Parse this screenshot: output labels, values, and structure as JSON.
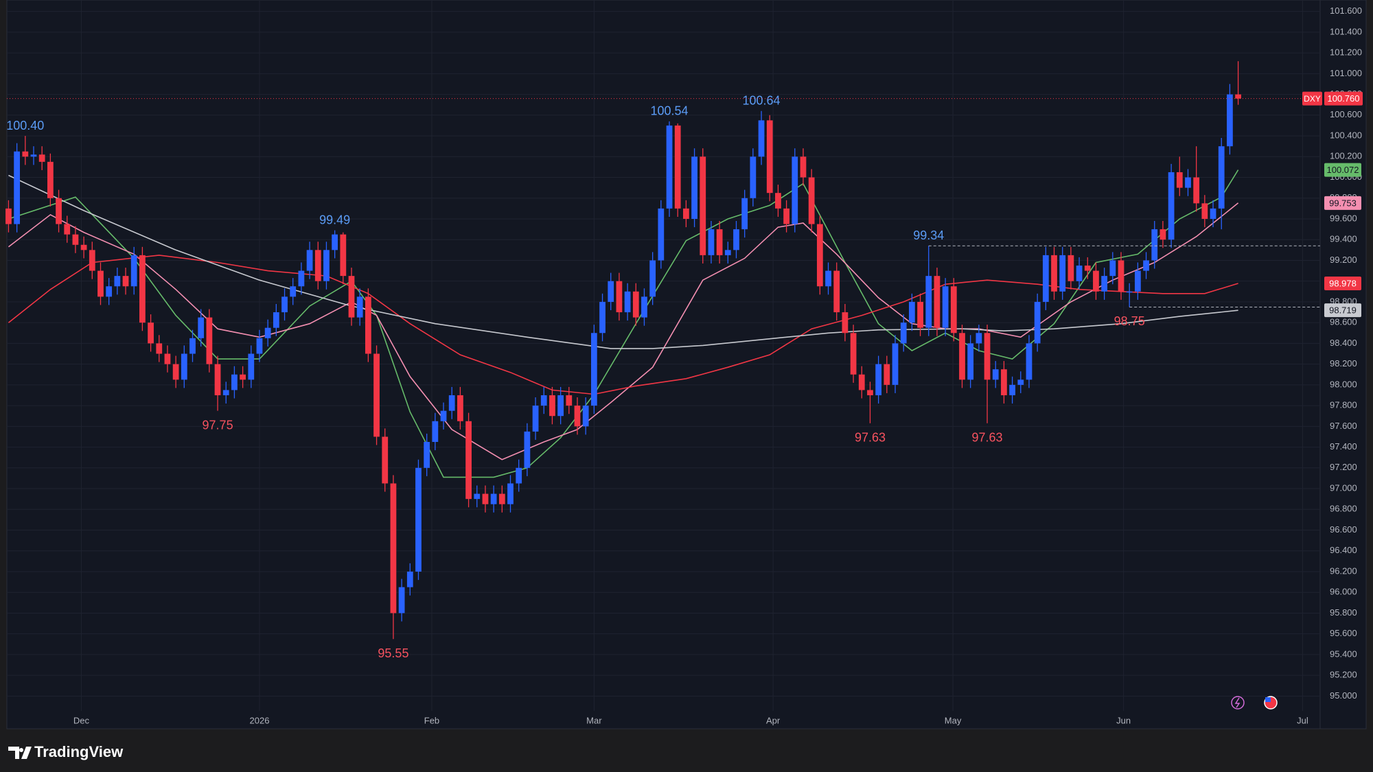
{
  "chart_data": {
    "type": "candlestick",
    "up_color": "#2962ff",
    "down_color": "#f23645",
    "grid": true,
    "xlim": [
      -0.2,
      156.8
    ],
    "xticks": [
      {
        "value": 8.7,
        "label": "Dec"
      },
      {
        "value": 30,
        "label": "2026"
      },
      {
        "value": 50.6,
        "label": "Feb"
      },
      {
        "value": 70,
        "label": "Mar"
      },
      {
        "value": 91.4,
        "label": "Apr"
      },
      {
        "value": 112.9,
        "label": "May"
      },
      {
        "value": 133.3,
        "label": "Jun"
      },
      {
        "value": 154.7,
        "label": "Jul"
      }
    ],
    "ylim": [
      94.857,
      101.71
    ],
    "yticks": [
      {
        "value": 95,
        "label": "95.000"
      },
      {
        "value": 95.2,
        "label": "95.200"
      },
      {
        "value": 95.4,
        "label": "95.400"
      },
      {
        "value": 95.6,
        "label": "95.600"
      },
      {
        "value": 95.8,
        "label": "95.800"
      },
      {
        "value": 96,
        "label": "96.000"
      },
      {
        "value": 96.2,
        "label": "96.200"
      },
      {
        "value": 96.4,
        "label": "96.400"
      },
      {
        "value": 96.6,
        "label": "96.600"
      },
      {
        "value": 96.8,
        "label": "96.800"
      },
      {
        "value": 97,
        "label": "97.000"
      },
      {
        "value": 97.2,
        "label": "97.200"
      },
      {
        "value": 97.4,
        "label": "97.400"
      },
      {
        "value": 97.6,
        "label": "97.600"
      },
      {
        "value": 97.8,
        "label": "97.800"
      },
      {
        "value": 98,
        "label": "98.000"
      },
      {
        "value": 98.2,
        "label": "98.200"
      },
      {
        "value": 98.4,
        "label": "98.400"
      },
      {
        "value": 98.6,
        "label": "98.600"
      },
      {
        "value": 98.8,
        "label": "98.800"
      },
      {
        "value": 99,
        "label": "99.000"
      },
      {
        "value": 99.2,
        "label": "99.200"
      },
      {
        "value": 99.4,
        "label": "99.400"
      },
      {
        "value": 99.6,
        "label": "99.600"
      },
      {
        "value": 99.8,
        "label": "99.800"
      },
      {
        "value": 100,
        "label": "100.000"
      },
      {
        "value": 100.2,
        "label": "100.200"
      },
      {
        "value": 100.4,
        "label": "100.400"
      },
      {
        "value": 100.6,
        "label": "100.600"
      },
      {
        "value": 100.8,
        "label": "100.800"
      },
      {
        "value": 101,
        "label": "101.000"
      },
      {
        "value": 101.2,
        "label": "101.200"
      },
      {
        "value": 101.4,
        "label": "101.400"
      },
      {
        "value": 101.6,
        "label": "101.600"
      }
    ],
    "candles": [
      [
        99.7,
        99.78,
        99.47,
        99.55
      ],
      [
        99.55,
        100.33,
        99.47,
        100.25
      ],
      [
        100.25,
        100.4,
        100.12,
        100.2
      ],
      [
        100.2,
        100.3,
        100.12,
        100.22
      ],
      [
        100.22,
        100.3,
        100.07,
        100.15
      ],
      [
        100.15,
        100.23,
        99.72,
        99.8
      ],
      [
        99.8,
        99.88,
        99.47,
        99.55
      ],
      [
        99.55,
        99.63,
        99.37,
        99.45
      ],
      [
        99.45,
        99.53,
        99.27,
        99.35
      ],
      [
        99.35,
        99.43,
        99.22,
        99.3
      ],
      [
        99.3,
        99.38,
        99.02,
        99.1
      ],
      [
        99.1,
        99.18,
        98.77,
        98.85
      ],
      [
        98.85,
        99.03,
        98.77,
        98.95
      ],
      [
        98.95,
        99.13,
        98.87,
        99.05
      ],
      [
        99.05,
        99.13,
        98.87,
        98.95
      ],
      [
        98.95,
        99.33,
        98.87,
        99.25
      ],
      [
        99.25,
        99.33,
        98.52,
        98.6
      ],
      [
        98.6,
        98.68,
        98.32,
        98.4
      ],
      [
        98.4,
        98.48,
        98.22,
        98.3
      ],
      [
        98.3,
        98.38,
        98.12,
        98.2
      ],
      [
        98.2,
        98.28,
        97.97,
        98.05
      ],
      [
        98.05,
        98.38,
        97.97,
        98.3
      ],
      [
        98.3,
        98.53,
        98.22,
        98.45
      ],
      [
        98.45,
        98.73,
        98.37,
        98.65
      ],
      [
        98.65,
        98.73,
        98.12,
        98.2
      ],
      [
        98.2,
        98.28,
        97.75,
        97.9
      ],
      [
        97.9,
        98.03,
        97.82,
        97.95
      ],
      [
        97.95,
        98.18,
        97.87,
        98.1
      ],
      [
        98.1,
        98.18,
        97.97,
        98.05
      ],
      [
        98.05,
        98.38,
        97.97,
        98.3
      ],
      [
        98.3,
        98.53,
        98.22,
        98.45
      ],
      [
        98.45,
        98.63,
        98.37,
        98.55
      ],
      [
        98.55,
        98.78,
        98.47,
        98.7
      ],
      [
        98.7,
        98.93,
        98.62,
        98.85
      ],
      [
        98.85,
        99.03,
        98.77,
        98.95
      ],
      [
        98.95,
        99.18,
        98.87,
        99.1
      ],
      [
        99.1,
        99.38,
        99.02,
        99.3
      ],
      [
        99.3,
        99.38,
        98.92,
        99.0
      ],
      [
        99.0,
        99.38,
        98.92,
        99.3
      ],
      [
        99.3,
        99.49,
        99.22,
        99.45
      ],
      [
        99.45,
        99.47,
        98.97,
        99.05
      ],
      [
        99.05,
        99.13,
        98.57,
        98.65
      ],
      [
        98.65,
        98.93,
        98.57,
        98.85
      ],
      [
        98.85,
        98.93,
        98.22,
        98.3
      ],
      [
        98.3,
        98.38,
        97.42,
        97.5
      ],
      [
        97.5,
        97.58,
        96.97,
        97.05
      ],
      [
        97.05,
        97.13,
        95.55,
        95.8
      ],
      [
        95.8,
        96.13,
        95.72,
        96.05
      ],
      [
        96.05,
        96.28,
        95.97,
        96.2
      ],
      [
        96.2,
        97.28,
        96.12,
        97.2
      ],
      [
        97.2,
        97.53,
        97.12,
        97.45
      ],
      [
        97.45,
        97.73,
        97.37,
        97.65
      ],
      [
        97.65,
        97.83,
        97.57,
        97.75
      ],
      [
        97.75,
        97.98,
        97.67,
        97.9
      ],
      [
        97.9,
        97.98,
        97.57,
        97.65
      ],
      [
        97.65,
        97.73,
        96.82,
        96.9
      ],
      [
        96.9,
        97.03,
        96.82,
        96.95
      ],
      [
        96.95,
        97.03,
        96.77,
        96.85
      ],
      [
        96.85,
        97.03,
        96.77,
        96.95
      ],
      [
        96.95,
        97.03,
        96.77,
        96.85
      ],
      [
        96.85,
        97.13,
        96.77,
        97.05
      ],
      [
        97.05,
        97.28,
        96.97,
        97.2
      ],
      [
        97.2,
        97.63,
        97.12,
        97.55
      ],
      [
        97.55,
        97.88,
        97.47,
        97.8
      ],
      [
        97.8,
        97.98,
        97.72,
        97.9
      ],
      [
        97.9,
        97.98,
        97.62,
        97.7
      ],
      [
        97.7,
        97.98,
        97.62,
        97.9
      ],
      [
        97.9,
        97.98,
        97.72,
        97.8
      ],
      [
        97.8,
        97.88,
        97.52,
        97.6
      ],
      [
        97.6,
        97.88,
        97.52,
        97.8
      ],
      [
        97.8,
        98.58,
        97.72,
        98.5
      ],
      [
        98.5,
        98.88,
        98.42,
        98.8
      ],
      [
        98.8,
        99.08,
        98.72,
        99.0
      ],
      [
        99.0,
        99.08,
        98.62,
        98.7
      ],
      [
        98.7,
        98.98,
        98.62,
        98.9
      ],
      [
        98.9,
        98.98,
        98.57,
        98.65
      ],
      [
        98.65,
        98.93,
        98.57,
        98.85
      ],
      [
        98.85,
        99.28,
        98.77,
        99.2
      ],
      [
        99.2,
        99.78,
        99.12,
        99.7
      ],
      [
        99.7,
        100.54,
        99.62,
        100.5
      ],
      [
        100.5,
        100.52,
        99.62,
        99.7
      ],
      [
        99.7,
        99.78,
        99.52,
        99.6
      ],
      [
        99.6,
        100.28,
        99.52,
        100.2
      ],
      [
        100.2,
        100.28,
        99.17,
        99.25
      ],
      [
        99.25,
        99.58,
        99.17,
        99.5
      ],
      [
        99.5,
        99.58,
        99.17,
        99.25
      ],
      [
        99.25,
        99.38,
        99.17,
        99.3
      ],
      [
        99.3,
        99.58,
        99.22,
        99.5
      ],
      [
        99.5,
        99.88,
        99.42,
        99.8
      ],
      [
        99.8,
        100.28,
        99.72,
        100.2
      ],
      [
        100.2,
        100.64,
        100.12,
        100.55
      ],
      [
        100.55,
        100.6,
        99.77,
        99.85
      ],
      [
        99.85,
        99.93,
        99.62,
        99.7
      ],
      [
        99.7,
        99.78,
        99.47,
        99.55
      ],
      [
        99.55,
        100.28,
        99.47,
        100.2
      ],
      [
        100.2,
        100.28,
        99.92,
        100.0
      ],
      [
        100.0,
        100.08,
        99.47,
        99.55
      ],
      [
        99.55,
        99.63,
        98.87,
        98.95
      ],
      [
        98.95,
        99.18,
        98.87,
        99.1
      ],
      [
        99.1,
        99.18,
        98.62,
        98.7
      ],
      [
        98.7,
        98.78,
        98.42,
        98.5
      ],
      [
        98.5,
        98.58,
        98.02,
        98.1
      ],
      [
        98.1,
        98.18,
        97.87,
        97.95
      ],
      [
        97.95,
        98.03,
        97.63,
        97.9
      ],
      [
        97.9,
        98.28,
        97.82,
        98.2
      ],
      [
        98.2,
        98.28,
        97.92,
        98.0
      ],
      [
        98.0,
        98.48,
        97.92,
        98.4
      ],
      [
        98.4,
        98.68,
        98.32,
        98.6
      ],
      [
        98.6,
        98.88,
        98.52,
        98.8
      ],
      [
        98.8,
        98.88,
        98.47,
        98.55
      ],
      [
        98.55,
        99.34,
        98.47,
        99.05
      ],
      [
        99.05,
        99.13,
        98.47,
        98.55
      ],
      [
        98.55,
        99.03,
        98.47,
        98.95
      ],
      [
        98.95,
        99.03,
        98.42,
        98.5
      ],
      [
        98.5,
        98.58,
        97.97,
        98.05
      ],
      [
        98.05,
        98.48,
        97.97,
        98.4
      ],
      [
        98.4,
        98.58,
        98.32,
        98.5
      ],
      [
        98.5,
        98.58,
        97.63,
        98.05
      ],
      [
        98.05,
        98.23,
        97.97,
        98.15
      ],
      [
        98.15,
        98.23,
        97.82,
        97.9
      ],
      [
        97.9,
        98.08,
        97.82,
        98.0
      ],
      [
        98.0,
        98.13,
        97.92,
        98.05
      ],
      [
        98.05,
        98.48,
        97.97,
        98.4
      ],
      [
        98.4,
        98.88,
        98.32,
        98.8
      ],
      [
        98.8,
        99.33,
        98.72,
        99.25
      ],
      [
        99.25,
        99.33,
        98.82,
        98.9
      ],
      [
        98.9,
        99.33,
        98.82,
        99.25
      ],
      [
        99.25,
        99.33,
        98.92,
        99.0
      ],
      [
        99.0,
        99.23,
        98.92,
        99.15
      ],
      [
        99.15,
        99.23,
        99.02,
        99.1
      ],
      [
        99.1,
        99.18,
        98.82,
        98.9
      ],
      [
        98.9,
        99.13,
        98.82,
        99.05
      ],
      [
        99.05,
        99.28,
        98.97,
        99.2
      ],
      [
        99.2,
        99.28,
        98.82,
        98.9
      ],
      [
        98.9,
        98.98,
        98.75,
        98.9
      ],
      [
        98.9,
        99.18,
        98.82,
        99.1
      ],
      [
        99.1,
        99.28,
        99.02,
        99.2
      ],
      [
        99.2,
        99.58,
        99.12,
        99.5
      ],
      [
        99.5,
        99.58,
        99.32,
        99.4
      ],
      [
        99.4,
        100.13,
        99.32,
        100.05
      ],
      [
        100.05,
        100.2,
        99.82,
        99.9
      ],
      [
        99.9,
        100.08,
        99.82,
        100.0
      ],
      [
        100.0,
        100.3,
        99.67,
        99.75
      ],
      [
        99.75,
        99.83,
        99.52,
        99.6
      ],
      [
        99.6,
        99.78,
        99.52,
        99.7
      ],
      [
        99.7,
        100.38,
        99.5,
        100.3
      ],
      [
        100.3,
        100.9,
        100.22,
        100.8
      ],
      [
        100.8,
        101.12,
        100.7,
        100.76
      ]
    ],
    "series": [
      {
        "color": "#66bb6a",
        "x": [
          0,
          8,
          15,
          20,
          25,
          30,
          36,
          41,
          44,
          48,
          52,
          58,
          62,
          66,
          70,
          75,
          81,
          86,
          91,
          95,
          100,
          104,
          108,
          112,
          116,
          120,
          125,
          130,
          135,
          140,
          145,
          147
        ],
        "values": [
          99.6,
          99.81,
          99.22,
          98.67,
          98.25,
          98.25,
          98.76,
          99.0,
          98.67,
          97.74,
          97.11,
          97.11,
          97.2,
          97.49,
          97.91,
          98.59,
          99.39,
          99.6,
          99.73,
          99.94,
          99.18,
          98.59,
          98.33,
          98.5,
          98.33,
          98.25,
          98.59,
          99.18,
          99.26,
          99.6,
          99.81,
          100.072
        ]
      },
      {
        "color": "#f48fb1",
        "x": [
          0,
          5,
          9,
          15,
          20,
          25,
          30,
          36,
          41,
          44,
          48,
          53,
          59,
          64,
          68,
          72,
          77,
          83,
          88,
          92,
          95,
          99,
          104,
          108,
          112,
          116,
          121,
          127,
          132,
          137,
          142,
          147
        ],
        "values": [
          99.33,
          99.64,
          99.47,
          99.26,
          98.92,
          98.54,
          98.46,
          98.59,
          98.8,
          98.67,
          98.08,
          97.57,
          97.28,
          97.45,
          97.57,
          97.83,
          98.17,
          99.01,
          99.22,
          99.52,
          99.56,
          99.26,
          98.84,
          98.59,
          98.54,
          98.54,
          98.46,
          98.8,
          99.01,
          99.18,
          99.43,
          99.753
        ]
      },
      {
        "color": "#f23645",
        "x": [
          0,
          5,
          10,
          18,
          25,
          31,
          38,
          43,
          48,
          54,
          60,
          65,
          70,
          75,
          81,
          86,
          91,
          96,
          102,
          107,
          112,
          117,
          123,
          128,
          133,
          138,
          143,
          147
        ],
        "values": [
          98.6,
          98.92,
          99.18,
          99.25,
          99.18,
          99.1,
          99.05,
          98.88,
          98.59,
          98.29,
          98.12,
          97.95,
          97.91,
          97.99,
          98.06,
          98.17,
          98.29,
          98.54,
          98.67,
          98.8,
          98.97,
          99.01,
          98.97,
          98.92,
          98.9,
          98.88,
          98.88,
          98.978
        ]
      },
      {
        "color": "#c8cad0",
        "x": [
          0,
          9,
          20,
          30,
          41,
          51,
          62,
          72,
          77,
          83,
          93,
          98,
          104,
          114,
          119,
          125,
          133,
          140,
          147
        ],
        "values": [
          100.02,
          99.68,
          99.3,
          99.01,
          98.76,
          98.59,
          98.46,
          98.35,
          98.35,
          98.38,
          98.46,
          98.5,
          98.53,
          98.54,
          98.52,
          98.54,
          98.59,
          98.66,
          98.719
        ]
      }
    ],
    "extremes": [
      {
        "value": 100.4,
        "label": "100.40",
        "at": "high"
      },
      {
        "value": 97.75,
        "label": "97.75",
        "at": "low"
      },
      {
        "value": 99.49,
        "label": "99.49",
        "at": "high"
      },
      {
        "value": 95.55,
        "label": "95.55",
        "at": "low"
      },
      {
        "value": 100.54,
        "label": "100.54",
        "at": "high"
      },
      {
        "value": 100.64,
        "label": "100.64",
        "at": "high"
      },
      {
        "value": 97.63,
        "label": "97.63",
        "at": "low"
      },
      {
        "value": 99.34,
        "label": "99.34",
        "at": "high",
        "dashed": true
      },
      {
        "value": 97.63,
        "label": "97.63",
        "at": "low"
      },
      {
        "value": 98.75,
        "label": "98.75",
        "at": "low",
        "dashed": true
      }
    ],
    "last": {
      "symbol": "DXY",
      "label": "100.760"
    }
  },
  "brand": "TradingView"
}
